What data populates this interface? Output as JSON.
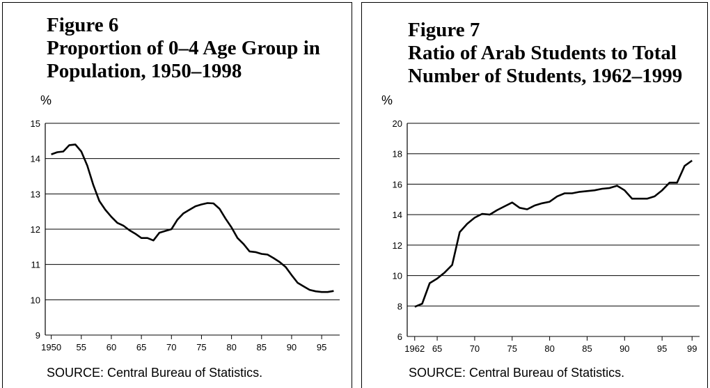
{
  "chart_data": [
    {
      "type": "line",
      "title": "Figure 6",
      "subtitle": "Proportion of  0–4 Age Group in Population, 1950–1998",
      "y_label": "%",
      "note": "SOURCE: Central Bureau of Statistics.",
      "color": "#000000",
      "grid": true,
      "x": [
        1950,
        1951,
        1952,
        1953,
        1954,
        1955,
        1956,
        1957,
        1958,
        1959,
        1960,
        1961,
        1962,
        1963,
        1964,
        1965,
        1966,
        1967,
        1968,
        1969,
        1970,
        1971,
        1972,
        1973,
        1974,
        1975,
        1976,
        1977,
        1978,
        1979,
        1980,
        1981,
        1982,
        1983,
        1984,
        1985,
        1986,
        1987,
        1988,
        1989,
        1990,
        1991,
        1992,
        1993,
        1994,
        1995,
        1996,
        1997
      ],
      "values": [
        14.12,
        14.18,
        14.2,
        14.38,
        14.4,
        14.2,
        13.8,
        13.25,
        12.8,
        12.55,
        12.35,
        12.18,
        12.1,
        11.97,
        11.87,
        11.75,
        11.75,
        11.68,
        11.9,
        11.95,
        12.0,
        12.27,
        12.45,
        12.55,
        12.65,
        12.7,
        12.74,
        12.73,
        12.58,
        12.3,
        12.05,
        11.75,
        11.58,
        11.37,
        11.35,
        11.3,
        11.28,
        11.18,
        11.07,
        10.93,
        10.7,
        10.48,
        10.38,
        10.28,
        10.24,
        10.22,
        10.22,
        10.25
      ],
      "xlim": [
        1949,
        1998
      ],
      "xticks": [
        1950,
        {
          "value": 1955,
          "label": "55"
        },
        {
          "value": 1960,
          "label": "60"
        },
        {
          "value": 1965,
          "label": "65"
        },
        {
          "value": 1970,
          "label": "70"
        },
        {
          "value": 1975,
          "label": "75"
        },
        {
          "value": 1980,
          "label": "80"
        },
        {
          "value": 1985,
          "label": "85"
        },
        {
          "value": 1990,
          "label": "90"
        },
        {
          "value": 1995,
          "label": "95"
        }
      ],
      "ylim": [
        9,
        15
      ],
      "yticks": [
        9,
        10,
        11,
        12,
        13,
        14,
        15
      ]
    },
    {
      "type": "line",
      "title": "Figure 7",
      "subtitle": "Ratio of Arab Students to Total Number of Students, 1962–1999",
      "y_label": "%",
      "note": "SOURCE: Central Bureau of Statistics.",
      "color": "#000000",
      "grid": true,
      "x": [
        1962,
        1963,
        1964,
        1965,
        1966,
        1967,
        1968,
        1969,
        1970,
        1971,
        1972,
        1973,
        1974,
        1975,
        1976,
        1977,
        1978,
        1979,
        1980,
        1981,
        1982,
        1983,
        1984,
        1985,
        1986,
        1987,
        1988,
        1989,
        1990,
        1991,
        1992,
        1993,
        1994,
        1995,
        1996,
        1997,
        1998,
        1999
      ],
      "values": [
        7.95,
        8.15,
        9.5,
        9.8,
        10.2,
        10.7,
        12.85,
        13.4,
        13.8,
        14.05,
        14.0,
        14.3,
        14.55,
        14.8,
        14.45,
        14.35,
        14.6,
        14.75,
        14.85,
        15.2,
        15.4,
        15.4,
        15.5,
        15.55,
        15.6,
        15.7,
        15.75,
        15.9,
        15.6,
        15.05,
        15.05,
        15.05,
        15.2,
        15.6,
        16.1,
        16.1,
        17.2,
        17.55
      ],
      "xlim": [
        1961,
        2000
      ],
      "xticks": [
        1962,
        {
          "value": 1965,
          "label": "65"
        },
        {
          "value": 1970,
          "label": "70"
        },
        {
          "value": 1975,
          "label": "75"
        },
        {
          "value": 1980,
          "label": "80"
        },
        {
          "value": 1985,
          "label": "85"
        },
        {
          "value": 1990,
          "label": "90"
        },
        {
          "value": 1995,
          "label": "95"
        },
        {
          "value": 1999,
          "label": "99"
        }
      ],
      "ylim": [
        6,
        20
      ],
      "yticks": [
        6,
        8,
        10,
        12,
        14,
        16,
        18,
        20
      ]
    }
  ]
}
